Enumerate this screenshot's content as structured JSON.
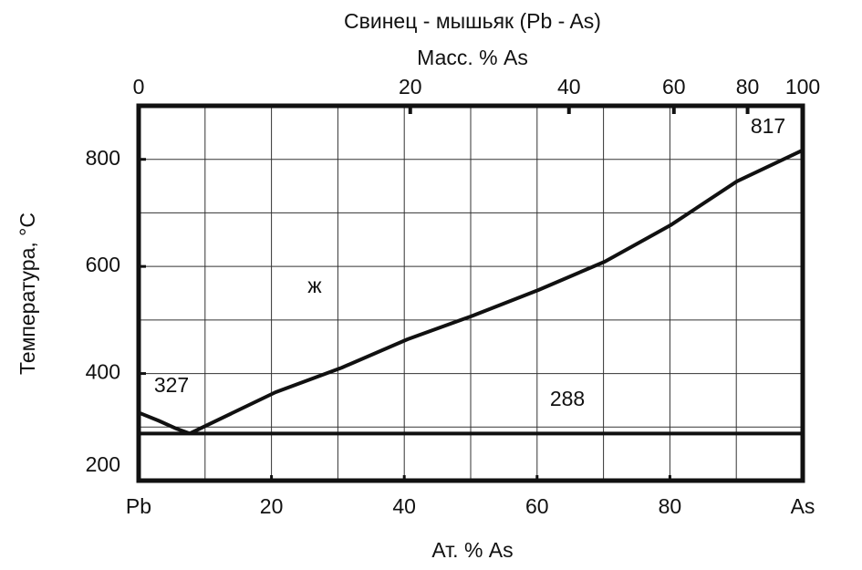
{
  "chart_data": {
    "type": "line",
    "title": "Свинец - мышьяк (Pb - As)",
    "x2label": "Масс. % As",
    "xlabel": "Ат. % As",
    "ylabel": "Температура,  °C",
    "annotations": [
      "327",
      "288",
      "ж",
      "817"
    ],
    "xlim": [
      0,
      100
    ],
    "ylim": [
      200,
      900
    ],
    "xticks": [
      {
        "value": 0,
        "label": "Pb"
      },
      20,
      40,
      60,
      80,
      {
        "value": 100,
        "label": "As"
      }
    ],
    "x2ticks": [
      {
        "value": 0,
        "label": "0"
      },
      {
        "value": 40.9,
        "label": "20"
      },
      {
        "value": 64.8,
        "label": "40"
      },
      {
        "value": 80.6,
        "label": "60"
      },
      {
        "value": 91.7,
        "label": "80"
      },
      {
        "value": 100,
        "label": "100"
      }
    ],
    "yticks": [
      200,
      400,
      600,
      800
    ],
    "xgrid": [
      10,
      20,
      30,
      40,
      50,
      60,
      70,
      80,
      90
    ],
    "ygrid": [
      300,
      400,
      500,
      600,
      700,
      800
    ],
    "grid": true,
    "color": "#111111",
    "series": [
      {
        "x": [
          0,
          3,
          5.5,
          7.7
        ],
        "values": [
          327,
          312,
          298,
          288
        ]
      },
      {
        "x": [
          7.7,
          20.6,
          30.6,
          40.5,
          50.1,
          60.2,
          70.2,
          80.1,
          90.1,
          100
        ],
        "values": [
          288,
          365,
          411,
          464,
          507,
          556,
          609,
          677,
          759,
          817
        ]
      },
      {
        "x": [
          0,
          100
        ],
        "values": [
          288,
          288
        ]
      }
    ]
  }
}
